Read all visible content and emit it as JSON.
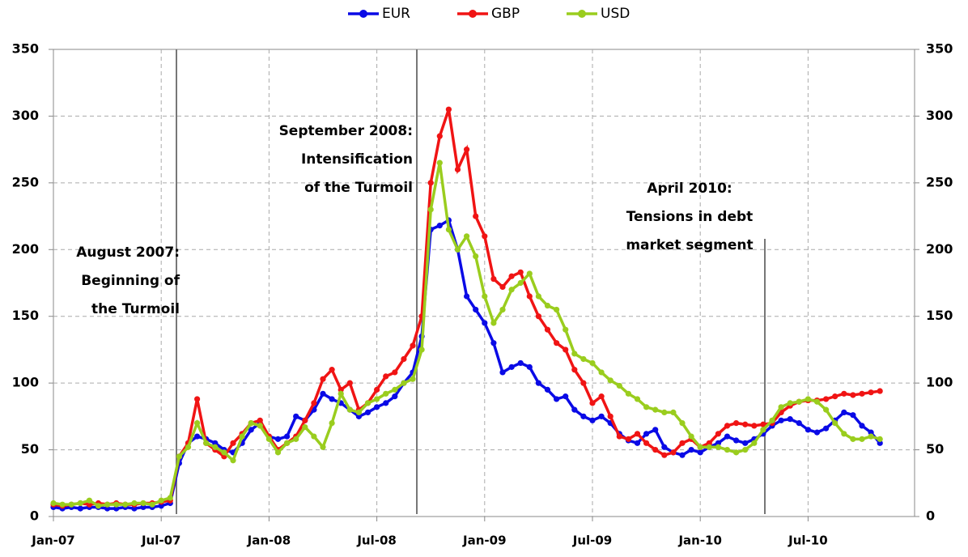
{
  "chart_data": {
    "type": "line",
    "categories": [
      "Jan-07",
      null,
      null,
      null,
      null,
      null,
      null,
      null,
      null,
      null,
      null,
      null,
      "Jul-07",
      null,
      null,
      null,
      null,
      null,
      null,
      null,
      null,
      null,
      null,
      null,
      "Jan-08",
      null,
      null,
      null,
      null,
      null,
      null,
      null,
      null,
      null,
      null,
      null,
      "Jul-08",
      null,
      null,
      null,
      null,
      null,
      null,
      null,
      null,
      null,
      null,
      null,
      "Jan-09",
      null,
      null,
      null,
      null,
      null,
      null,
      null,
      null,
      null,
      null,
      null,
      "Jul-09",
      null,
      null,
      null,
      null,
      null,
      null,
      null,
      null,
      null,
      null,
      null,
      "Jan-10",
      null,
      null,
      null,
      null,
      null,
      null,
      null,
      null,
      null,
      null,
      null,
      "Jul-10",
      null,
      null,
      null,
      null,
      null,
      null,
      null,
      null
    ],
    "series": [
      {
        "name": "EUR",
        "color": "#0a0ae6",
        "values": [
          7,
          6,
          7,
          6,
          7,
          7,
          6,
          6,
          7,
          6,
          7,
          7,
          8,
          10,
          40,
          55,
          60,
          58,
          55,
          50,
          48,
          55,
          65,
          70,
          60,
          58,
          60,
          75,
          72,
          80,
          92,
          88,
          85,
          80,
          75,
          78,
          82,
          85,
          90,
          100,
          108,
          135,
          215,
          218,
          222,
          200,
          165,
          155,
          145,
          130,
          108,
          112,
          115,
          112,
          100,
          95,
          88,
          90,
          80,
          75,
          72,
          75,
          70,
          62,
          57,
          55,
          62,
          65,
          52,
          48,
          46,
          50,
          48,
          52,
          55,
          60,
          57,
          55,
          58,
          62,
          68,
          72,
          73,
          70,
          65,
          63,
          66,
          72,
          78,
          76,
          68,
          63,
          55
        ]
      },
      {
        "name": "GBP",
        "color": "#f01414",
        "values": [
          9,
          8,
          9,
          10,
          9,
          10,
          9,
          10,
          9,
          9,
          10,
          10,
          11,
          12,
          45,
          55,
          88,
          55,
          50,
          45,
          55,
          62,
          70,
          72,
          60,
          50,
          55,
          60,
          72,
          85,
          103,
          110,
          95,
          100,
          80,
          85,
          95,
          105,
          108,
          118,
          128,
          150,
          250,
          285,
          305,
          260,
          275,
          225,
          210,
          178,
          172,
          180,
          183,
          165,
          150,
          140,
          130,
          125,
          110,
          100,
          85,
          90,
          75,
          60,
          58,
          62,
          55,
          50,
          46,
          48,
          55,
          58,
          52,
          55,
          62,
          68,
          70,
          69,
          68,
          69,
          70,
          78,
          83,
          86,
          87,
          87,
          88,
          90,
          92,
          91,
          92,
          93,
          94
        ]
      },
      {
        "name": "USD",
        "color": "#9acd1e",
        "values": [
          10,
          9,
          9,
          10,
          12,
          8,
          9,
          9,
          9,
          10,
          10,
          9,
          12,
          14,
          45,
          52,
          70,
          55,
          52,
          48,
          42,
          60,
          70,
          68,
          58,
          48,
          55,
          58,
          67,
          60,
          52,
          70,
          92,
          80,
          78,
          85,
          88,
          92,
          95,
          100,
          103,
          125,
          230,
          265,
          215,
          200,
          210,
          195,
          165,
          145,
          155,
          170,
          175,
          182,
          165,
          158,
          155,
          140,
          122,
          118,
          115,
          108,
          102,
          98,
          92,
          88,
          82,
          80,
          78,
          78,
          70,
          60,
          52,
          52,
          52,
          50,
          48,
          50,
          55,
          65,
          72,
          82,
          85,
          86,
          88,
          86,
          80,
          70,
          62,
          58,
          58,
          60,
          58
        ]
      }
    ],
    "ylim": [
      0,
      350
    ],
    "yticks": [
      0,
      50,
      100,
      150,
      200,
      250,
      300,
      350
    ],
    "y2lim": [
      0,
      350
    ],
    "y2ticks": [
      0,
      50,
      100,
      150,
      200,
      250,
      300,
      350
    ],
    "grid": true,
    "legend": "top",
    "annotations": [
      {
        "lines": [
          "August 2007:",
          "Beginning of",
          "the Turmoil"
        ]
      },
      {
        "lines": [
          "September 2008:",
          "Intensification",
          "of the Turmoil"
        ]
      },
      {
        "lines": [
          "April 2010:",
          "Tensions in debt",
          "market segment"
        ]
      }
    ]
  }
}
